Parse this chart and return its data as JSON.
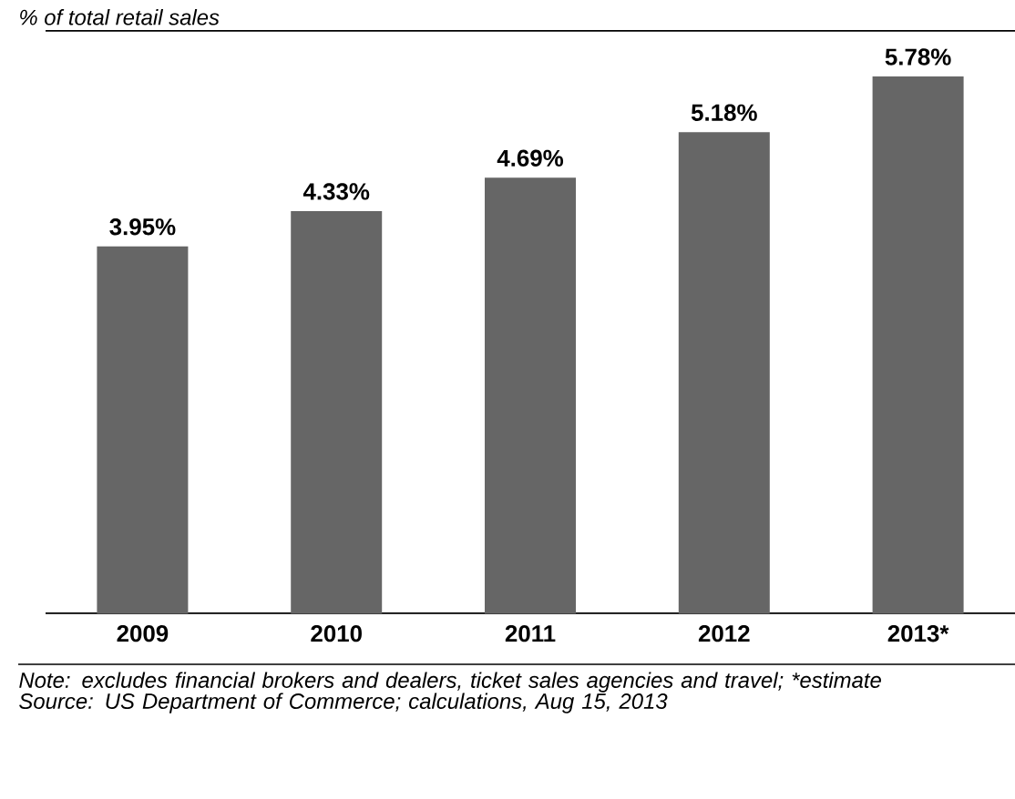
{
  "chart_data": {
    "type": "bar",
    "subtitle": "% of total retail sales",
    "categories": [
      "2009",
      "2010",
      "2011",
      "2012",
      "2013*"
    ],
    "values": [
      3.95,
      4.33,
      4.69,
      5.18,
      5.78
    ],
    "value_labels": [
      "3.95%",
      "4.33%",
      "4.69%",
      "5.18%",
      "5.78%"
    ],
    "color": "#666666",
    "annotations": [
      "Note: excludes financial brokers and dealers, ticket sales agencies and travel; *estimate",
      "Source: US Department of Commerce; calculations, Aug 15, 2013"
    ]
  }
}
